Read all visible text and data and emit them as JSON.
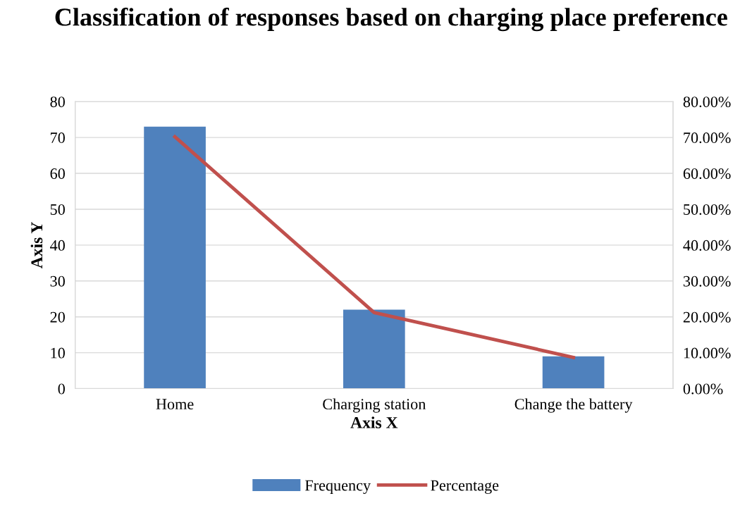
{
  "chart_data": {
    "type": "bar",
    "title": "Classification of responses based on charging place preference",
    "xlabel": "Axis X",
    "ylabel": "Axis Y",
    "categories": [
      "Home",
      "Charging station",
      "Change the battery"
    ],
    "series": [
      {
        "name": "Frequency",
        "color": "#4f81bd",
        "values": [
          73,
          22,
          9
        ]
      },
      {
        "name": "Percentage",
        "type": "line",
        "axis": "y2",
        "color": "#c0504d",
        "values": [
          70.2,
          21.2,
          8.7
        ]
      }
    ],
    "ylim": [
      0,
      80
    ],
    "yticks": [
      0,
      10,
      20,
      30,
      40,
      50,
      60,
      70,
      80
    ],
    "y2lim": [
      0,
      80
    ],
    "y2ticks": [
      {
        "value": 0,
        "label": "0.00%"
      },
      {
        "value": 10,
        "label": "10.00%"
      },
      {
        "value": 20,
        "label": "20.00%"
      },
      {
        "value": 30,
        "label": "30.00%"
      },
      {
        "value": 40,
        "label": "40.00%"
      },
      {
        "value": 50,
        "label": "50.00%"
      },
      {
        "value": 60,
        "label": "60.00%"
      },
      {
        "value": 70,
        "label": "70.00%"
      },
      {
        "value": 80,
        "label": "80.00%"
      }
    ],
    "grid": "y",
    "legend": "bottom",
    "marker": "none",
    "line_style": "solid"
  }
}
